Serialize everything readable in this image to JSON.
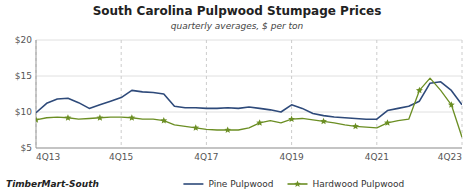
{
  "chart_data": {
    "type": "line",
    "title": "South Carolina Pulpwood Stumpage Prices",
    "subtitle": "quarterly averages, $ per ton",
    "annotations": [
      "TimberMart-South"
    ],
    "categories": [
      "4Q13",
      null,
      null,
      null,
      null,
      null,
      null,
      null,
      "4Q15",
      null,
      null,
      null,
      null,
      null,
      null,
      null,
      "4Q17",
      null,
      null,
      null,
      null,
      null,
      null,
      null,
      "4Q19",
      null,
      null,
      null,
      null,
      null,
      null,
      null,
      "4Q21",
      null,
      null,
      null,
      null,
      null,
      null,
      null,
      "4Q23"
    ],
    "series": [
      {
        "name": "Pine Pulpwood",
        "color": "#2E4A7A",
        "values": [
          9.9,
          11.2,
          11.8,
          11.9,
          11.3,
          10.5,
          11.0,
          11.5,
          12.0,
          13.0,
          12.8,
          12.7,
          12.5,
          10.8,
          10.6,
          10.6,
          10.5,
          10.5,
          10.6,
          10.5,
          10.7,
          10.5,
          10.3,
          10.0,
          11.0,
          10.5,
          9.8,
          9.5,
          9.3,
          9.2,
          9.1,
          9.0,
          9.0,
          10.2,
          10.5,
          10.8,
          11.5,
          14.0,
          14.2,
          13.0,
          11.0
        ]
      },
      {
        "name": "Hardwood Pulpwood",
        "color": "#6B8E23",
        "marker": "star",
        "values": [
          8.9,
          9.2,
          9.3,
          9.2,
          9.0,
          9.1,
          9.2,
          9.3,
          9.3,
          9.2,
          9.0,
          9.0,
          8.8,
          8.2,
          8.0,
          7.8,
          7.6,
          7.5,
          7.5,
          7.5,
          7.8,
          8.5,
          8.8,
          8.5,
          9.0,
          9.1,
          8.9,
          8.7,
          8.5,
          8.2,
          8.0,
          7.9,
          7.8,
          8.5,
          8.8,
          9.0,
          13.0,
          14.7,
          13.0,
          11.0,
          6.5
        ]
      }
    ],
    "ylim": [
      5,
      20
    ],
    "yticks": [
      {
        "value": 5,
        "label": "$5"
      },
      {
        "value": 10,
        "label": "$10"
      },
      {
        "value": 15,
        "label": "$15"
      },
      {
        "value": 20,
        "label": "$20"
      }
    ],
    "grid": true,
    "legend": "bottom"
  }
}
